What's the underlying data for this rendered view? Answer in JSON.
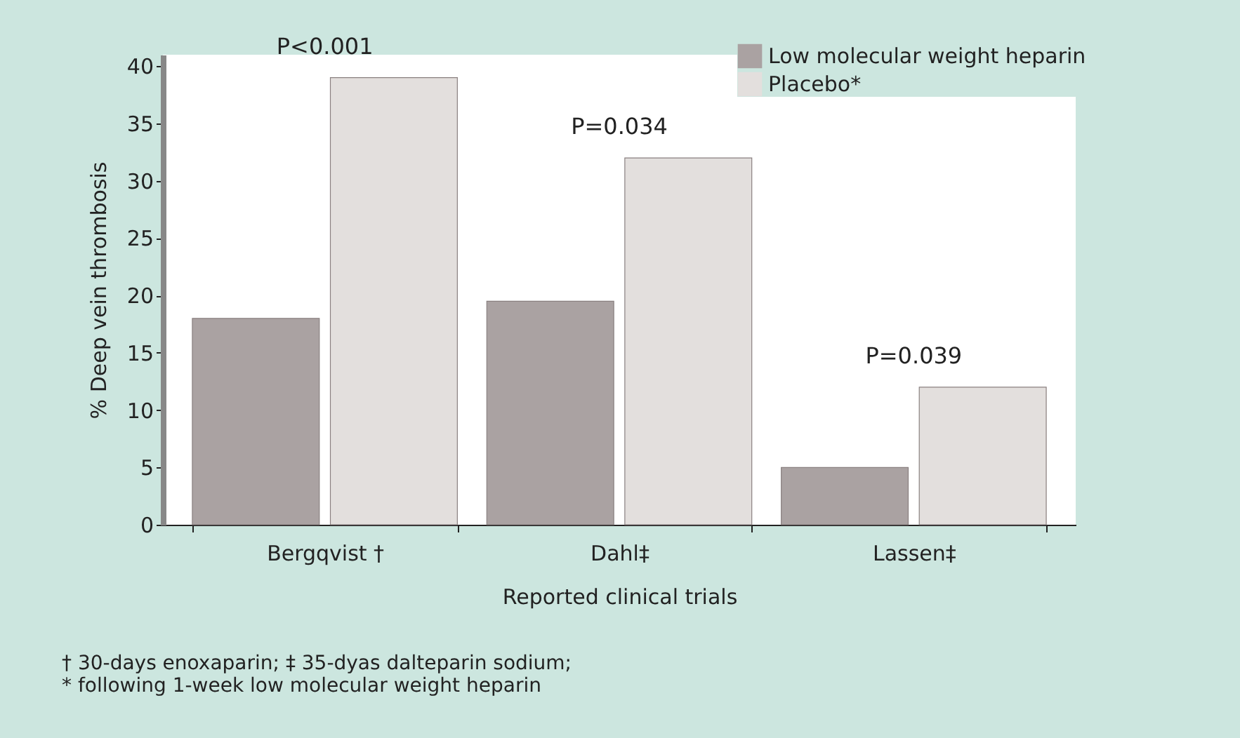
{
  "chart_data": {
    "type": "bar",
    "xlabel": "Reported clinical trials",
    "ylabel": "% Deep vein thrombosis",
    "categories": [
      "Bergqvist †",
      "Dahl‡",
      "Lassen‡"
    ],
    "series": [
      {
        "name": "Low molecular weight heparin",
        "color": "#aaa2a2",
        "values": [
          18,
          19.5,
          5
        ]
      },
      {
        "name": "Placebo*",
        "color": "#e3dfdd",
        "values": [
          39,
          32,
          12
        ]
      }
    ],
    "ylim": [
      0,
      41
    ],
    "yticks": [
      0,
      5,
      10,
      15,
      20,
      25,
      30,
      35,
      40
    ],
    "grid": false,
    "legend": "top right",
    "annotations": [
      "P<0.001",
      "P=0.034",
      "P=0.039",
      "† 30-days enoxaparin; ‡ 35-dyas dalteparin sodium;",
      "* following 1-week low molecular weight heparin"
    ]
  }
}
